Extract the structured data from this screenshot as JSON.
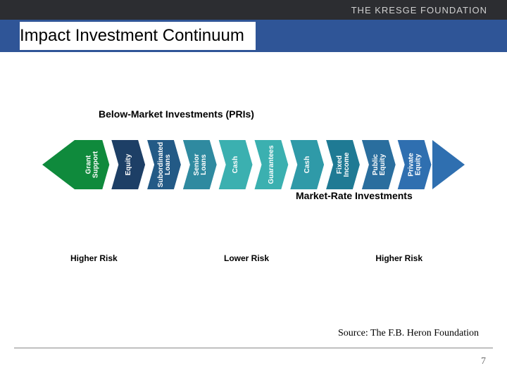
{
  "header": {
    "org": "THE KRESGE FOUNDATION",
    "title": "Impact Investment Continuum"
  },
  "diagram": {
    "type": "flowchart",
    "background_color": "#ffffff",
    "arrow_height": 70,
    "arrowhead_width": 46,
    "left_arrow_color": "#0f8a3c",
    "right_arrow_color": "#2f6fb0",
    "section_labels": {
      "below_market": "Below-Market Investments (PRIs)",
      "market_rate": "Market-Rate Investments"
    },
    "segments": [
      {
        "label": "Grant Support",
        "color": "#0f8a3c",
        "lines": [
          "Grant",
          "Support"
        ]
      },
      {
        "label": "Equity",
        "color": "#1d3f66",
        "lines": [
          "Equity"
        ]
      },
      {
        "label": "Subordinated Loans",
        "color": "#235a86",
        "lines": [
          "Subordinated",
          "Loans"
        ]
      },
      {
        "label": "Senior Loans",
        "color": "#2f8aa0",
        "lines": [
          "Senior",
          "Loans"
        ]
      },
      {
        "label": "Cash",
        "color": "#3bb0b0",
        "lines": [
          "Cash"
        ]
      },
      {
        "label": "Guarantees",
        "color": "#3bb0b0",
        "lines": [
          "Guarantees"
        ]
      },
      {
        "label": "Cash",
        "color": "#2f9aa8",
        "lines": [
          "Cash"
        ]
      },
      {
        "label": "Fixed Income",
        "color": "#1f7a94",
        "lines": [
          "Fixed",
          "Income"
        ]
      },
      {
        "label": "Public Equity",
        "color": "#2a6e9e",
        "lines": [
          "Public",
          "Equity"
        ]
      },
      {
        "label": "Private Equity",
        "color": "#2f6fb0",
        "lines": [
          "Private",
          "Equity"
        ]
      }
    ],
    "risk_labels": [
      "Higher Risk",
      "Lower Risk",
      "Higher Risk"
    ],
    "label_fontsize": 10,
    "section_label_fontsize": 14
  },
  "footer": {
    "source": "Source: The F.B. Heron Foundation",
    "page": "7"
  },
  "colors": {
    "topbar": "#2c2d31",
    "titlebar": "#2f5597",
    "text": "#000000",
    "muted": "#666666"
  }
}
